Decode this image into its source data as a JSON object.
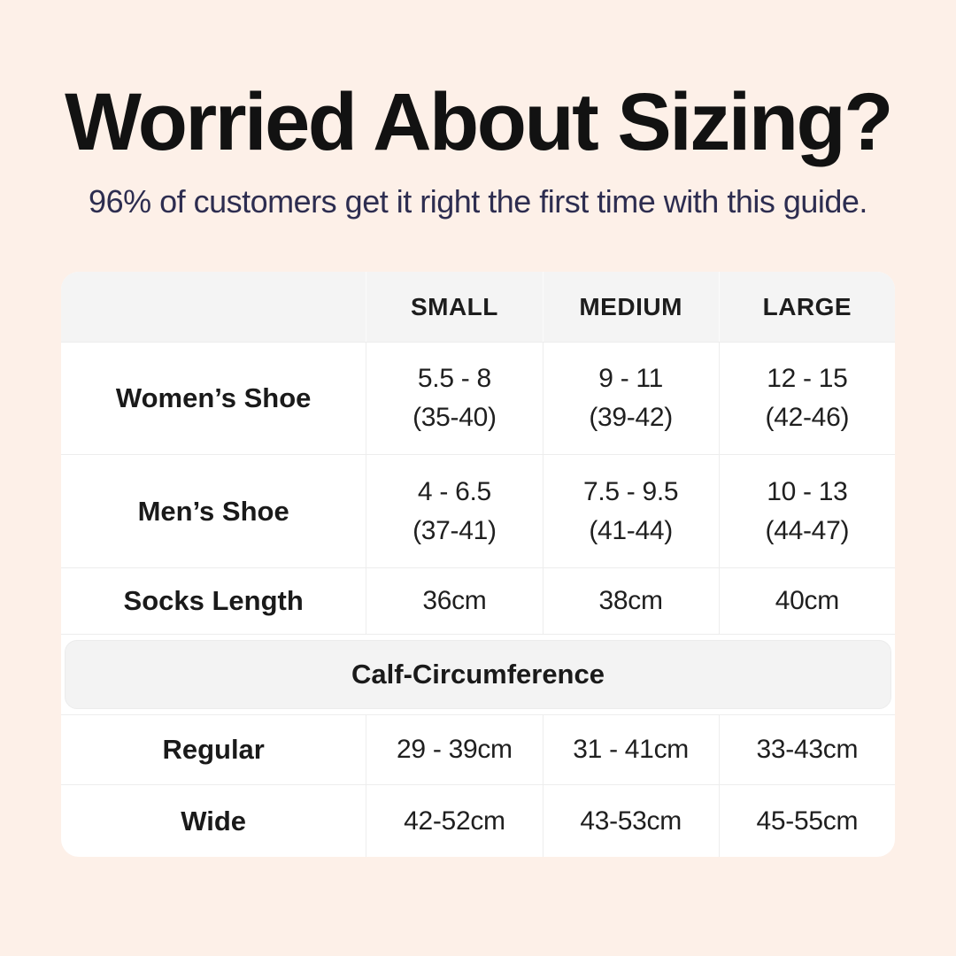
{
  "header": {
    "title": "Worried About Sizing?",
    "subtitle": "96% of customers get it right the first time with this guide."
  },
  "size_chart": {
    "columns": [
      "SMALL",
      "MEDIUM",
      "LARGE"
    ],
    "rows": [
      {
        "label": "Women’s Shoe",
        "values": [
          [
            "5.5 - 8",
            "(35-40)"
          ],
          [
            "9 - 11",
            "(39-42)"
          ],
          [
            "12 - 15",
            "(42-46)"
          ]
        ]
      },
      {
        "label": "Men’s Shoe",
        "values": [
          [
            "4 - 6.5",
            "(37-41)"
          ],
          [
            "7.5 - 9.5",
            "(41-44)"
          ],
          [
            "10 - 13",
            "(44-47)"
          ]
        ]
      },
      {
        "label": "Socks Length",
        "values": [
          [
            "36cm"
          ],
          [
            "38cm"
          ],
          [
            "40cm"
          ]
        ]
      }
    ],
    "section_header": "Calf-Circumference",
    "calf_rows": [
      {
        "label": "Regular",
        "values": [
          "29 - 39cm",
          "31 - 41cm",
          "33-43cm"
        ]
      },
      {
        "label": "Wide",
        "values": [
          "42-52cm",
          "43-53cm",
          "45-55cm"
        ]
      }
    ]
  },
  "colors": {
    "page_background": "#fdf0e8",
    "card_background": "#ffffff",
    "band_background": "#f3f3f3",
    "title_text": "#121212",
    "subtitle_text": "#2d2d50",
    "table_text": "#1d1d1d",
    "divider": "#ededed"
  },
  "chart_data": {
    "type": "table",
    "title": "Worried About Sizing?",
    "subtitle": "96% of customers get it right the first time with this guide.",
    "columns": [
      "",
      "SMALL",
      "MEDIUM",
      "LARGE"
    ],
    "rows": [
      [
        "Women’s Shoe",
        "5.5 - 8 (35-40)",
        "9 - 11 (39-42)",
        "12 - 15 (42-46)"
      ],
      [
        "Men’s Shoe",
        "4 - 6.5 (37-41)",
        "7.5 - 9.5 (41-44)",
        "10 - 13 (44-47)"
      ],
      [
        "Socks Length",
        "36cm",
        "38cm",
        "40cm"
      ],
      [
        "Calf-Circumference",
        "",
        "",
        ""
      ],
      [
        "Regular",
        "29 - 39cm",
        "31 - 41cm",
        "33-43cm"
      ],
      [
        "Wide",
        "42-52cm",
        "43-53cm",
        "45-55cm"
      ]
    ]
  }
}
